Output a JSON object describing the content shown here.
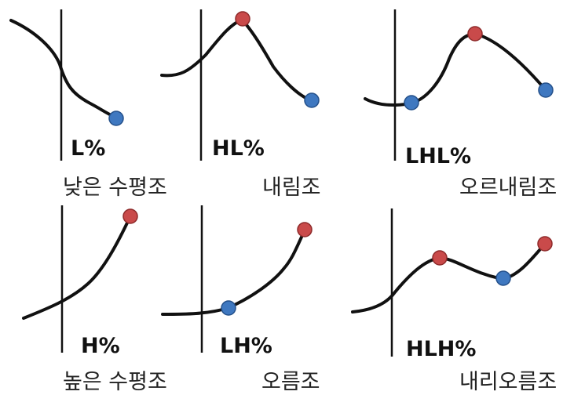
{
  "colors": {
    "high": "#c94a4a",
    "low": "#3f78c0",
    "ink": "#111111"
  },
  "panels": [
    {
      "code": "L%",
      "name": "낮은 수평조"
    },
    {
      "code": "HL%",
      "name": "내림조"
    },
    {
      "code": "LHL%",
      "name": "오르내림조"
    },
    {
      "code": "H%",
      "name": "높은 수평조"
    },
    {
      "code": "LH%",
      "name": "오름조"
    },
    {
      "code": "HLH%",
      "name": "내리오름조"
    }
  ]
}
